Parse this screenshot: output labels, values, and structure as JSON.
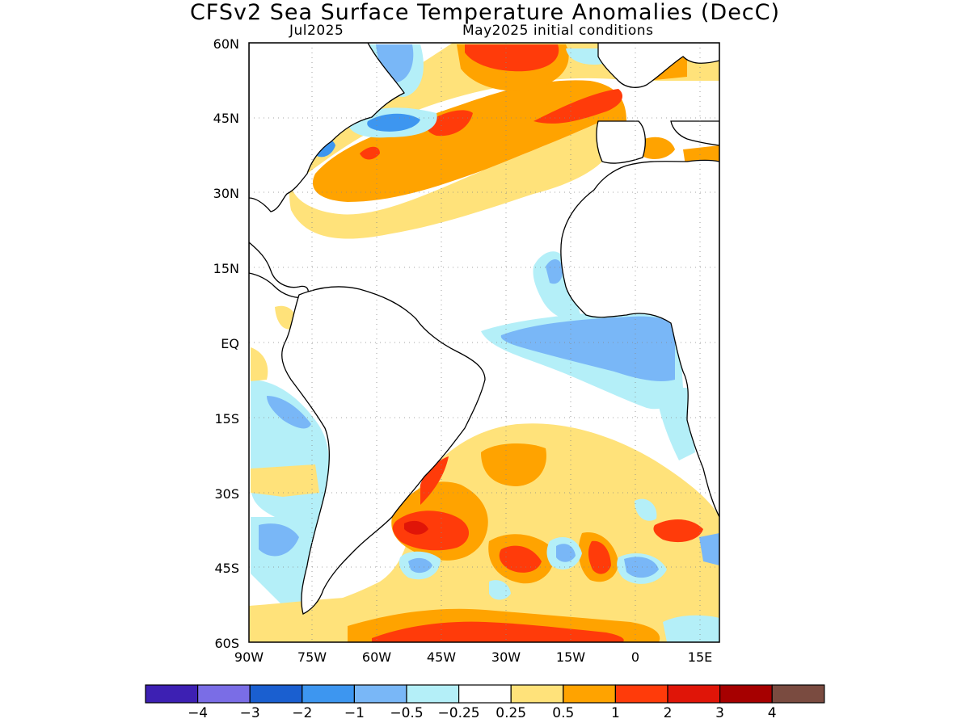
{
  "title": "CFSv2 Sea Surface Temperature Anomalies (DecC)",
  "valid_month": "Jul2025",
  "init_conditions": "May2025 initial conditions",
  "lat_labels": [
    "60N",
    "45N",
    "30N",
    "15N",
    "EQ",
    "15S",
    "30S",
    "45S",
    "60S"
  ],
  "lon_labels": [
    "90W",
    "75W",
    "60W",
    "45W",
    "30W",
    "15W",
    "0",
    "15E"
  ],
  "colorbar": {
    "colors": [
      "#3d20b3",
      "#7a6de6",
      "#1a5fd0",
      "#3d96f0",
      "#79b7f7",
      "#b4eff8",
      "#ffffff",
      "#ffe27a",
      "#ffa300",
      "#ff3b0a",
      "#e01508",
      "#a60000",
      "#7a4b40"
    ],
    "labels": [
      "−4",
      "−3",
      "−2",
      "−1",
      "−0.5",
      "−0.25",
      "0.25",
      "0.5",
      "1",
      "2",
      "3",
      "4"
    ]
  }
}
